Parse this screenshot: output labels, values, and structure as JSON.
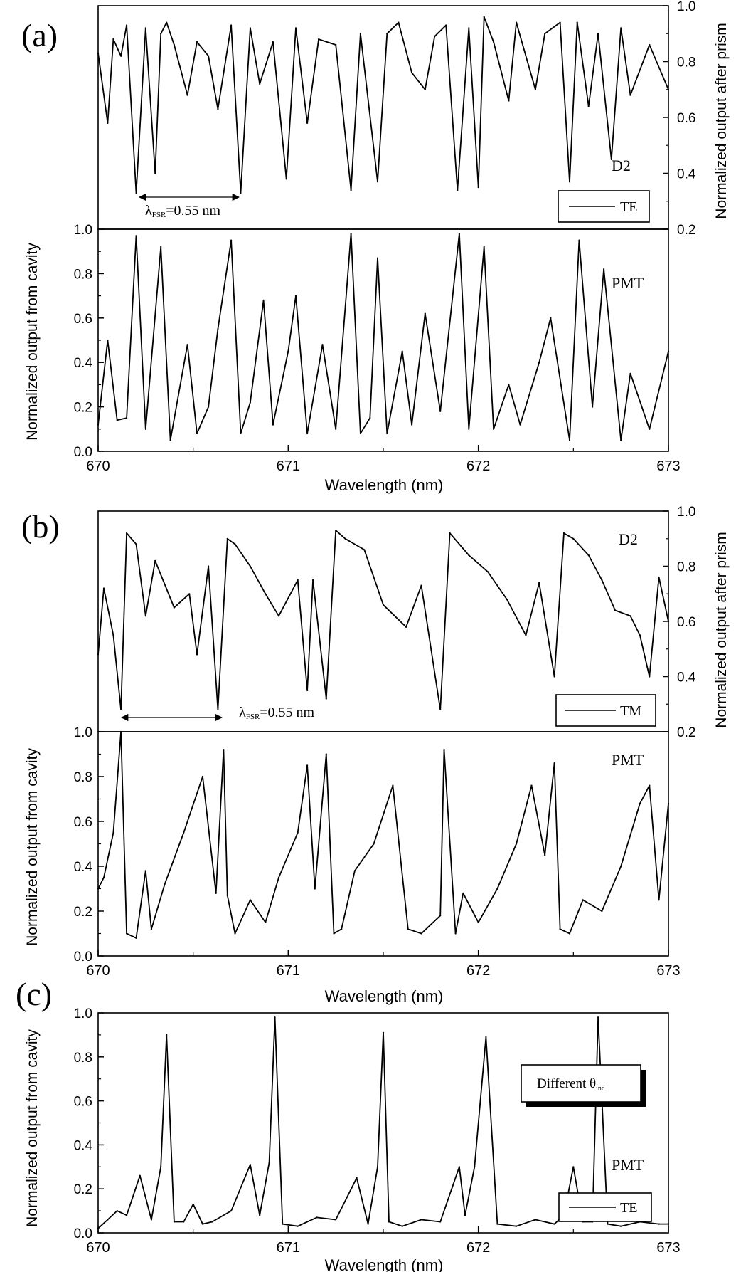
{
  "figure": {
    "panel_labels": [
      "(a)",
      "(b)",
      "(c)"
    ],
    "x_axis_label": "Wavelength (nm)",
    "left_axis_label": "Normalized output from cavity",
    "right_axis_label": "Normalized output after prism",
    "fsr_label_a": "λFSR=0.55 nm",
    "fsr_label_b": "λFSR=0.55 nm",
    "fsr_text_lambda": "λ",
    "fsr_text_sub": "FSR",
    "fsr_text_value": "=0.55 nm",
    "d2_label": "D2",
    "pmt_label": "PMT",
    "legend_a": "TE",
    "legend_b": "TM",
    "legend_c": "TE",
    "note_c_main": "Different θ",
    "note_c_sub": "inc",
    "line_color": "#000000"
  },
  "chart_data": [
    {
      "panel": "(a)",
      "part": "upper",
      "type": "line",
      "series": [
        {
          "name": "TE",
          "detector": "D2"
        }
      ],
      "xlim": [
        670,
        673
      ],
      "ylim": [
        0.2,
        1.0
      ],
      "yticks": [
        "0.2",
        "0.4",
        "0.6",
        "0.8",
        "1.0"
      ],
      "x": [
        670.0,
        670.05,
        670.08,
        670.12,
        670.15,
        670.2,
        670.25,
        670.3,
        670.33,
        670.36,
        670.4,
        670.47,
        670.52,
        670.58,
        670.63,
        670.7,
        670.75,
        670.8,
        670.85,
        670.92,
        670.99,
        671.04,
        671.1,
        671.16,
        671.25,
        671.33,
        671.38,
        671.47,
        671.52,
        671.58,
        671.65,
        671.72,
        671.77,
        671.83,
        671.89,
        671.95,
        672.0,
        672.03,
        672.08,
        672.16,
        672.2,
        672.3,
        672.35,
        672.43,
        672.48,
        672.52,
        672.58,
        672.63,
        672.7,
        672.75,
        672.8,
        672.9,
        673.0
      ],
      "y": [
        0.83,
        0.58,
        0.88,
        0.82,
        0.93,
        0.33,
        0.92,
        0.4,
        0.9,
        0.94,
        0.86,
        0.68,
        0.87,
        0.82,
        0.63,
        0.93,
        0.33,
        0.92,
        0.72,
        0.87,
        0.38,
        0.92,
        0.58,
        0.88,
        0.86,
        0.34,
        0.9,
        0.37,
        0.9,
        0.94,
        0.76,
        0.7,
        0.89,
        0.93,
        0.34,
        0.92,
        0.35,
        0.96,
        0.87,
        0.66,
        0.94,
        0.7,
        0.9,
        0.94,
        0.37,
        0.94,
        0.64,
        0.9,
        0.45,
        0.92,
        0.68,
        0.86,
        0.7
      ]
    },
    {
      "panel": "(a)",
      "part": "lower",
      "type": "line",
      "series": [
        {
          "name": "",
          "detector": "PMT"
        }
      ],
      "xlim": [
        670,
        673
      ],
      "ylim": [
        0.0,
        1.0
      ],
      "xticks": [
        "670",
        "671",
        "672",
        "673"
      ],
      "yticks": [
        "0.0",
        "0.2",
        "0.4",
        "0.6",
        "0.8",
        "1.0"
      ],
      "x": [
        670.0,
        670.05,
        670.1,
        670.15,
        670.2,
        670.25,
        670.33,
        670.38,
        670.47,
        670.52,
        670.58,
        670.63,
        670.7,
        670.75,
        670.8,
        670.87,
        670.92,
        671.0,
        671.04,
        671.1,
        671.18,
        671.25,
        671.33,
        671.38,
        671.43,
        671.47,
        671.52,
        671.6,
        671.65,
        671.72,
        671.8,
        671.9,
        671.95,
        672.03,
        672.08,
        672.16,
        672.22,
        672.32,
        672.38,
        672.48,
        672.53,
        672.6,
        672.66,
        672.75,
        672.8,
        672.9,
        673.0
      ],
      "y": [
        0.12,
        0.5,
        0.14,
        0.15,
        0.97,
        0.1,
        0.92,
        0.05,
        0.48,
        0.08,
        0.2,
        0.55,
        0.95,
        0.08,
        0.22,
        0.68,
        0.12,
        0.45,
        0.7,
        0.08,
        0.48,
        0.1,
        0.98,
        0.08,
        0.15,
        0.87,
        0.08,
        0.45,
        0.12,
        0.62,
        0.18,
        0.98,
        0.1,
        0.92,
        0.1,
        0.3,
        0.12,
        0.4,
        0.6,
        0.05,
        0.95,
        0.2,
        0.82,
        0.05,
        0.35,
        0.1,
        0.45
      ]
    },
    {
      "panel": "(b)",
      "part": "upper",
      "type": "line",
      "series": [
        {
          "name": "TM",
          "detector": "D2"
        }
      ],
      "xlim": [
        670,
        673
      ],
      "ylim": [
        0.2,
        1.0
      ],
      "yticks": [
        "0.2",
        "0.4",
        "0.6",
        "0.8",
        "1.0"
      ],
      "x": [
        670.0,
        670.03,
        670.08,
        670.12,
        670.15,
        670.2,
        670.25,
        670.3,
        670.4,
        670.48,
        670.52,
        670.58,
        670.63,
        670.68,
        670.72,
        670.8,
        670.88,
        670.95,
        671.05,
        671.1,
        671.13,
        671.2,
        671.25,
        671.3,
        671.4,
        671.5,
        671.62,
        671.7,
        671.8,
        671.85,
        671.95,
        672.05,
        672.15,
        672.25,
        672.32,
        672.4,
        672.45,
        672.5,
        672.58,
        672.65,
        672.72,
        672.8,
        672.85,
        672.9,
        672.95,
        673.0
      ],
      "y": [
        0.48,
        0.72,
        0.55,
        0.28,
        0.92,
        0.88,
        0.62,
        0.82,
        0.65,
        0.7,
        0.48,
        0.8,
        0.28,
        0.9,
        0.88,
        0.8,
        0.7,
        0.62,
        0.75,
        0.35,
        0.75,
        0.32,
        0.93,
        0.9,
        0.86,
        0.66,
        0.58,
        0.73,
        0.28,
        0.92,
        0.84,
        0.78,
        0.68,
        0.55,
        0.74,
        0.4,
        0.92,
        0.9,
        0.84,
        0.75,
        0.64,
        0.62,
        0.55,
        0.4,
        0.76,
        0.6
      ]
    },
    {
      "panel": "(b)",
      "part": "lower",
      "type": "line",
      "series": [
        {
          "name": "",
          "detector": "PMT"
        }
      ],
      "xlim": [
        670,
        673
      ],
      "ylim": [
        0.0,
        1.0
      ],
      "xticks": [
        "670",
        "671",
        "672",
        "673"
      ],
      "yticks": [
        "0.0",
        "0.2",
        "0.4",
        "0.6",
        "0.8",
        "1.0"
      ],
      "x": [
        670.0,
        670.03,
        670.08,
        670.12,
        670.15,
        670.2,
        670.25,
        670.28,
        670.35,
        670.45,
        670.55,
        670.62,
        670.66,
        670.68,
        670.72,
        670.8,
        670.88,
        670.95,
        671.05,
        671.1,
        671.14,
        671.2,
        671.24,
        671.28,
        671.35,
        671.45,
        671.55,
        671.63,
        671.7,
        671.8,
        671.82,
        671.88,
        671.92,
        672.0,
        672.1,
        672.2,
        672.28,
        672.35,
        672.4,
        672.43,
        672.48,
        672.55,
        672.65,
        672.75,
        672.85,
        672.9,
        672.95,
        673.0
      ],
      "y": [
        0.3,
        0.35,
        0.55,
        1.0,
        0.1,
        0.08,
        0.38,
        0.12,
        0.32,
        0.55,
        0.8,
        0.28,
        0.92,
        0.27,
        0.1,
        0.25,
        0.15,
        0.35,
        0.55,
        0.85,
        0.3,
        0.9,
        0.1,
        0.12,
        0.38,
        0.5,
        0.76,
        0.12,
        0.1,
        0.18,
        0.92,
        0.1,
        0.28,
        0.15,
        0.3,
        0.5,
        0.76,
        0.45,
        0.86,
        0.12,
        0.1,
        0.25,
        0.2,
        0.4,
        0.68,
        0.76,
        0.25,
        0.68
      ]
    },
    {
      "panel": "(c)",
      "type": "line",
      "series": [
        {
          "name": "TE",
          "detector": "PMT"
        }
      ],
      "xlim": [
        670,
        673
      ],
      "ylim": [
        0.0,
        1.0
      ],
      "xticks": [
        "670",
        "671",
        "672",
        "673"
      ],
      "yticks": [
        "0.0",
        "0.2",
        "0.4",
        "0.6",
        "0.8",
        "1.0"
      ],
      "x": [
        670.0,
        670.05,
        670.1,
        670.15,
        670.22,
        670.28,
        670.33,
        670.36,
        670.4,
        670.45,
        670.5,
        670.55,
        670.6,
        670.7,
        670.8,
        670.85,
        670.9,
        670.93,
        670.97,
        671.05,
        671.15,
        671.25,
        671.36,
        671.42,
        671.47,
        671.5,
        671.53,
        671.6,
        671.7,
        671.8,
        671.9,
        671.93,
        671.98,
        672.04,
        672.1,
        672.2,
        672.3,
        672.4,
        672.45,
        672.5,
        672.55,
        672.6,
        672.63,
        672.68,
        672.75,
        672.85,
        672.95,
        673.0
      ],
      "y": [
        0.02,
        0.06,
        0.1,
        0.08,
        0.26,
        0.06,
        0.3,
        0.9,
        0.05,
        0.05,
        0.13,
        0.04,
        0.05,
        0.1,
        0.31,
        0.08,
        0.32,
        0.98,
        0.04,
        0.03,
        0.07,
        0.06,
        0.25,
        0.04,
        0.3,
        0.91,
        0.05,
        0.03,
        0.06,
        0.05,
        0.3,
        0.08,
        0.3,
        0.89,
        0.04,
        0.03,
        0.06,
        0.04,
        0.08,
        0.3,
        0.05,
        0.05,
        0.98,
        0.04,
        0.03,
        0.05,
        0.04,
        0.04
      ]
    }
  ]
}
